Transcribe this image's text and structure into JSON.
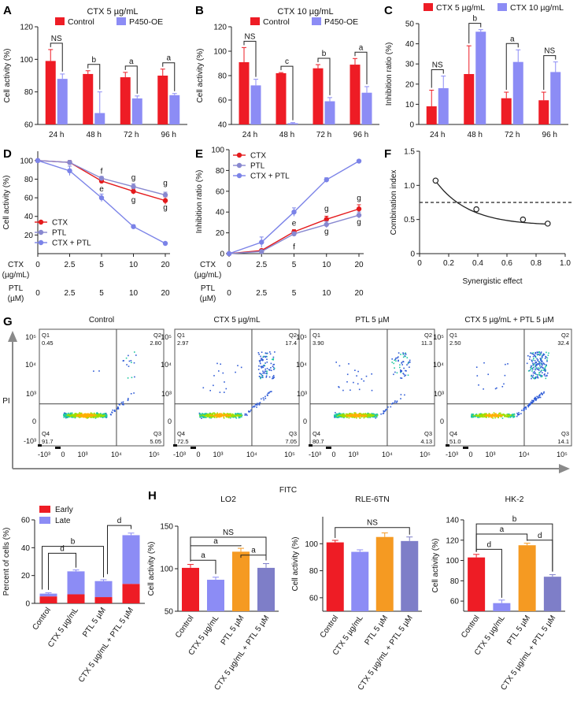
{
  "colors": {
    "control": "#ee1c25",
    "p450": "#8c8cf5",
    "cd_ctx": "#e41a1c",
    "cd_ptl": "#8888d0",
    "cd_combo": "#7b83e8",
    "orange": "#f59a22",
    "slate": "#7e7ec8",
    "axis": "#222222",
    "arrow": "#8a8a8a"
  },
  "chart_data": [
    {
      "id": "A",
      "type": "bar",
      "title": "CTX 5 µg/mL",
      "ylabel": "Cell activity (%)",
      "ylim": [
        60,
        120
      ],
      "yticks": [
        60,
        80,
        100,
        120
      ],
      "categories": [
        "24 h",
        "48 h",
        "72 h",
        "96 h"
      ],
      "legend": [
        "Control",
        "P450-OE"
      ],
      "series": [
        {
          "name": "Control",
          "values": [
            99,
            91,
            89,
            90
          ],
          "err": [
            7,
            2,
            3,
            4
          ]
        },
        {
          "name": "P450-OE",
          "values": [
            88,
            67,
            76,
            78
          ],
          "err": [
            3,
            13,
            1.5,
            1
          ]
        }
      ],
      "annotations": [
        "NS",
        "b",
        "a",
        "a"
      ]
    },
    {
      "id": "B",
      "type": "bar",
      "title": "CTX 10 µg/mL",
      "ylabel": "Cell activity (%)",
      "ylim": [
        40,
        120
      ],
      "yticks": [
        40,
        60,
        80,
        100,
        120
      ],
      "categories": [
        "24 h",
        "48 h",
        "72 h",
        "96 h"
      ],
      "legend": [
        "Control",
        "P450-OE"
      ],
      "series": [
        {
          "name": "Control",
          "values": [
            91,
            82,
            86,
            89
          ],
          "err": [
            12,
            0.5,
            3,
            5
          ]
        },
        {
          "name": "P450-OE",
          "values": [
            72,
            41,
            59,
            66
          ],
          "err": [
            5,
            0.5,
            3,
            5
          ]
        }
      ],
      "annotations": [
        "NS",
        "c",
        "b",
        "a"
      ]
    },
    {
      "id": "C",
      "type": "bar",
      "title": "",
      "ylabel": "Inhibition ratio (%)",
      "ylim": [
        0,
        50
      ],
      "yticks": [
        0,
        10,
        20,
        30,
        40,
        50
      ],
      "categories": [
        "24 h",
        "48 h",
        "72 h",
        "96 h"
      ],
      "legend": [
        "CTX 5 µg/mL",
        "CTX 10 µg/mL"
      ],
      "series": [
        {
          "name": "CTX 5 µg/mL",
          "values": [
            9,
            25,
            13,
            12
          ],
          "err": [
            8,
            14,
            3,
            4
          ]
        },
        {
          "name": "CTX 10 µg/mL",
          "values": [
            18,
            46,
            31,
            26
          ],
          "err": [
            6,
            1,
            6,
            5
          ]
        }
      ],
      "annotations": [
        "NS",
        "b",
        "a",
        "NS"
      ]
    },
    {
      "id": "D",
      "type": "line",
      "ylabel": "Cell activity (%)",
      "ylim": [
        0,
        110
      ],
      "yticks": [
        20,
        40,
        60,
        80,
        100
      ],
      "row1_label": [
        "CTX",
        "(µg/mL)"
      ],
      "row1_ticks": [
        "0",
        "2.5",
        "5",
        "10",
        "20"
      ],
      "row2_label": [
        "PTL",
        "(µM)"
      ],
      "row2_ticks": [
        "0",
        "2.5",
        "5",
        "10",
        "20"
      ],
      "legend": [
        "CTX",
        "PTL",
        "CTX + PTL"
      ],
      "series": [
        {
          "name": "CTX",
          "values": [
            100,
            98,
            78,
            67,
            57
          ],
          "err": [
            1,
            2,
            2,
            3,
            4
          ]
        },
        {
          "name": "PTL",
          "values": [
            100,
            98,
            81,
            72,
            63
          ],
          "err": [
            1,
            2,
            2,
            3,
            3
          ]
        },
        {
          "name": "CTX + PTL",
          "values": [
            100,
            89,
            60,
            29,
            11
          ],
          "err": [
            1,
            5,
            4,
            2,
            1
          ]
        }
      ],
      "point_labels": [
        "f",
        "e",
        "g",
        "g",
        "g",
        "g"
      ]
    },
    {
      "id": "E",
      "type": "line",
      "ylabel": "Inhibition ratio (%)",
      "ylim": [
        0,
        100
      ],
      "yticks": [
        0,
        20,
        40,
        60,
        80,
        100
      ],
      "row1_label": [
        "CTX",
        "(µg/mL)"
      ],
      "row1_ticks": [
        "0",
        "2.5",
        "5",
        "10",
        "20"
      ],
      "row2_label": [
        "PTL",
        "(µM)"
      ],
      "row2_ticks": [
        "0",
        "2.5",
        "5",
        "10",
        "20"
      ],
      "legend": [
        "CTX",
        "PTL",
        "CTX + PTL"
      ],
      "series": [
        {
          "name": "CTX",
          "values": [
            0,
            3,
            21,
            33,
            43
          ],
          "err": [
            0.5,
            1,
            2,
            3,
            4
          ]
        },
        {
          "name": "PTL",
          "values": [
            0,
            2,
            19,
            28,
            37
          ],
          "err": [
            0.5,
            1,
            2,
            3,
            3
          ]
        },
        {
          "name": "CTX + PTL",
          "values": [
            0,
            11,
            40,
            71,
            89
          ],
          "err": [
            0.5,
            5,
            4,
            2,
            1
          ]
        }
      ],
      "point_labels": [
        "e",
        "f",
        "g",
        "g",
        "g",
        "g"
      ]
    },
    {
      "id": "F",
      "type": "scatter",
      "ylabel": "Combination index",
      "xlabel": "Synergistic effect",
      "xlim": [
        0,
        1.0
      ],
      "ylim": [
        0,
        1.5
      ],
      "xticks": [
        "0",
        "0.2",
        "0.4",
        "0.6",
        "0.8",
        "1.0"
      ],
      "yticks": [
        "0",
        "0.5",
        "1.0",
        "1.5"
      ],
      "x": [
        0.11,
        0.39,
        0.71,
        0.88
      ],
      "y": [
        1.07,
        0.65,
        0.5,
        0.44
      ],
      "reference_line": 0.75
    },
    {
      "id": "G",
      "type": "scatter",
      "subtype": "flow cytometry",
      "xlabel": "FITC",
      "ylabel": "PI",
      "xticks": [
        "-10³",
        "0",
        "10³",
        "10⁴",
        "10⁵"
      ],
      "yticks": [
        "10⁵",
        "10⁴",
        "10³",
        "0",
        "-10³"
      ],
      "quadrants": [
        "Q1",
        "Q2",
        "Q3",
        "Q4"
      ],
      "panels": [
        {
          "title": "Control",
          "q1": "0.45",
          "q2": "2.80",
          "q3": "5.05",
          "q4": "91.7"
        },
        {
          "title": "CTX 5 µg/mL",
          "q1": "2.97",
          "q2": "17.4",
          "q3": "7.05",
          "q4": "72.5"
        },
        {
          "title": "PTL 5 µM",
          "q1": "3.90",
          "q2": "11.3",
          "q3": "4.13",
          "q4": "80.7"
        },
        {
          "title": "CTX 5 µg/mL + PTL 5 µM",
          "q1": "2.50",
          "q2": "32.4",
          "q3": "14.1",
          "q4": "51.0"
        }
      ]
    },
    {
      "id": "Gbar",
      "type": "bar",
      "subtype": "stacked",
      "ylabel": "Percent of cells (%)",
      "ylim": [
        0,
        60
      ],
      "yticks": [
        0,
        20,
        40,
        60
      ],
      "categories": [
        "Control",
        "CTX 5 µg/mL",
        "PTL 5 µM",
        "CTX 5 µg/mL + PTL 5 µM"
      ],
      "legend": [
        "Early",
        "Late"
      ],
      "series": [
        {
          "name": "Early",
          "values": [
            5,
            6.5,
            4.5,
            14
          ],
          "err": [
            0.6,
            0.6,
            0.6,
            0.7
          ]
        },
        {
          "name": "Late",
          "values": [
            2,
            16.5,
            11.5,
            35
          ],
          "err": [
            0.6,
            1,
            1,
            1.5
          ]
        }
      ],
      "annotations": [
        "d",
        "b",
        "d"
      ]
    },
    {
      "id": "H1",
      "type": "bar",
      "title": "LO2",
      "ylabel": "Cell activity (%)",
      "ylim": [
        50,
        150
      ],
      "yticks": [
        50,
        100,
        150
      ],
      "categories": [
        "Control",
        "CTX 5 µg/mL",
        "PTL 5 µM",
        "CTX 5 µg/mL + PTL 5 µM"
      ],
      "values": [
        101,
        87,
        120,
        101
      ],
      "err": [
        4,
        3,
        4,
        5
      ],
      "annotations": [
        "NS",
        "a",
        "a",
        "a"
      ]
    },
    {
      "id": "H2",
      "type": "bar",
      "title": "RLE-6TN",
      "ylabel": "Cell activity (%)",
      "ylim": [
        50,
        120
      ],
      "yticks": [
        60,
        80,
        100
      ],
      "categories": [
        "Control",
        "CTX 5 µg/mL",
        "PTL 5 µM",
        "CTX 5 µg/mL + PTL 5 µM"
      ],
      "values": [
        101,
        94,
        105,
        102
      ],
      "err": [
        1.5,
        1.5,
        3,
        3
      ],
      "annotations": [
        "NS"
      ]
    },
    {
      "id": "H3",
      "type": "bar",
      "title": "HK-2",
      "ylabel": "Cell activity (%)",
      "ylim": [
        50,
        140
      ],
      "yticks": [
        60,
        80,
        100,
        120,
        140
      ],
      "categories": [
        "Control",
        "CTX 5 µg/mL",
        "PTL 5 µM",
        "CTX 5 µg/mL + PTL 5 µM"
      ],
      "values": [
        103,
        58,
        115,
        84
      ],
      "err": [
        3,
        3,
        2,
        2
      ],
      "annotations": [
        "b",
        "a",
        "d",
        "d"
      ]
    }
  ],
  "panel_letters": [
    "A",
    "B",
    "C",
    "D",
    "E",
    "F",
    "G",
    "H"
  ]
}
